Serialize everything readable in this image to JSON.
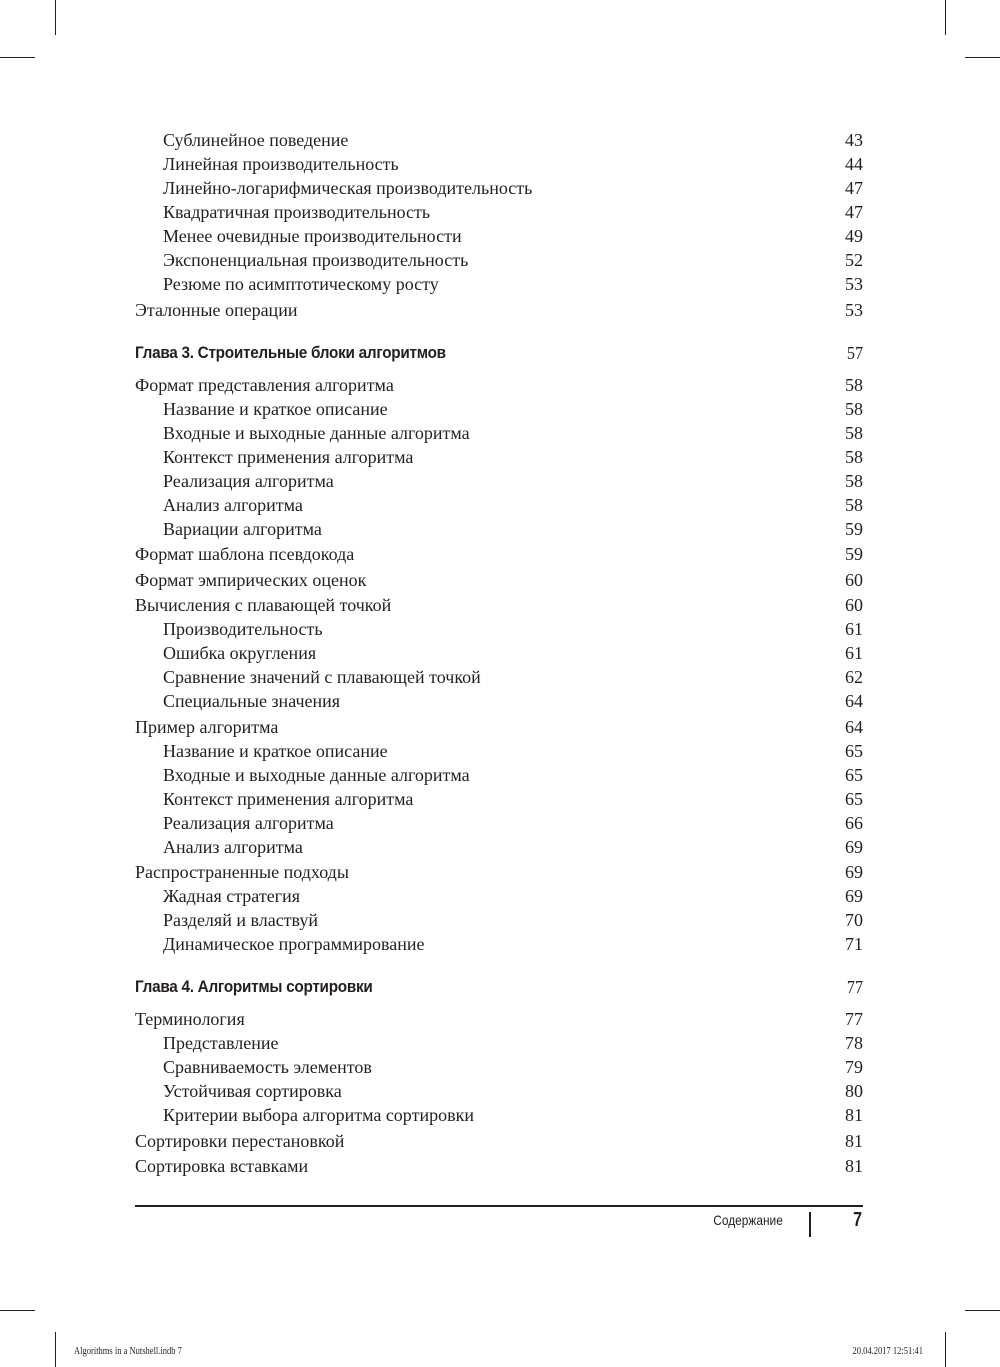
{
  "toc": [
    {
      "level": 2,
      "title": "Сублинейное поведение",
      "page": "43"
    },
    {
      "level": 2,
      "title": "Линейная производительность",
      "page": "44"
    },
    {
      "level": 2,
      "title": "Линейно-логарифмическая производительность",
      "page": "47"
    },
    {
      "level": 2,
      "title": "Квадратичная производительность",
      "page": "47"
    },
    {
      "level": 2,
      "title": "Менее очевидные производительности",
      "page": "49"
    },
    {
      "level": 2,
      "title": "Экспоненциальная производительность",
      "page": "52"
    },
    {
      "level": 2,
      "title": "Резюме по асимптотическому росту",
      "page": "53"
    },
    {
      "level": 1,
      "title": "Эталонные операции",
      "page": "53"
    },
    {
      "level": 0,
      "title": "Глава 3. Строительные блоки алгоритмов",
      "page": "57"
    },
    {
      "level": 1,
      "title": "Формат представления алгоритма",
      "page": "58"
    },
    {
      "level": 2,
      "title": "Название и краткое описание",
      "page": "58"
    },
    {
      "level": 2,
      "title": "Входные и выходные данные алгоритма",
      "page": "58"
    },
    {
      "level": 2,
      "title": "Контекст применения алгоритма",
      "page": "58"
    },
    {
      "level": 2,
      "title": "Реализация алгоритма",
      "page": "58"
    },
    {
      "level": 2,
      "title": "Анализ алгоритма",
      "page": "58"
    },
    {
      "level": 2,
      "title": "Вариации алгоритма",
      "page": "59"
    },
    {
      "level": 1,
      "title": "Формат шаблона псевдокода",
      "page": "59"
    },
    {
      "level": 1,
      "title": "Формат эмпирических оценок",
      "page": "60"
    },
    {
      "level": 1,
      "title": "Вычисления с плавающей точкой",
      "page": "60"
    },
    {
      "level": 2,
      "title": "Производительность",
      "page": "61"
    },
    {
      "level": 2,
      "title": "Ошибка округления",
      "page": "61"
    },
    {
      "level": 2,
      "title": "Сравнение значений с плавающей точкой",
      "page": "62"
    },
    {
      "level": 2,
      "title": "Специальные значения",
      "page": "64"
    },
    {
      "level": 1,
      "title": "Пример алгоритма",
      "page": "64"
    },
    {
      "level": 2,
      "title": "Название и краткое описание",
      "page": "65"
    },
    {
      "level": 2,
      "title": "Входные и выходные данные алгоритма",
      "page": "65"
    },
    {
      "level": 2,
      "title": "Контекст применения алгоритма",
      "page": "65"
    },
    {
      "level": 2,
      "title": "Реализация алгоритма",
      "page": "66"
    },
    {
      "level": 2,
      "title": "Анализ алгоритма",
      "page": "69"
    },
    {
      "level": 1,
      "title": "Распространенные подходы",
      "page": "69"
    },
    {
      "level": 2,
      "title": "Жадная стратегия",
      "page": "69"
    },
    {
      "level": 2,
      "title": "Разделяй и властвуй",
      "page": "70"
    },
    {
      "level": 2,
      "title": "Динамическое программирование",
      "page": "71"
    },
    {
      "level": 0,
      "title": "Глава 4. Алгоритмы сортировки",
      "page": "77"
    },
    {
      "level": 1,
      "title": "Терминология",
      "page": "77"
    },
    {
      "level": 2,
      "title": "Представление",
      "page": "78"
    },
    {
      "level": 2,
      "title": "Сравниваемость элементов",
      "page": "79"
    },
    {
      "level": 2,
      "title": "Устойчивая сортировка",
      "page": "80"
    },
    {
      "level": 2,
      "title": "Критерии выбора алгоритма сортировки",
      "page": "81"
    },
    {
      "level": 1,
      "title": "Сортировки перестановкой",
      "page": "81"
    },
    {
      "level": 1,
      "title": "Сортировка вставками",
      "page": "81"
    }
  ],
  "footer": {
    "running_head": "Содержание",
    "page_number": "7"
  },
  "slug": {
    "file": "Algorithms in a Nutshell.indb   7",
    "datetime": "20.04.2017   12:51:41"
  }
}
